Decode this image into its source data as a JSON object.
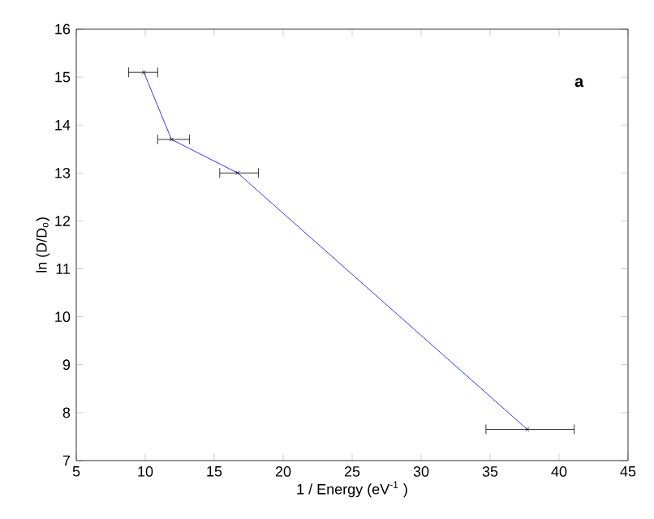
{
  "chart_data": {
    "type": "line",
    "xlabel": "1 / Energy (eV$^{-1}$ )",
    "ylabel": "ln (D/D$_{o}$)",
    "annotations": [
      "**a**"
    ],
    "x": [
      9.9,
      11.9,
      16.7,
      37.7
    ],
    "series": [
      {
        "color": "#0000ff",
        "values": [
          15.1,
          13.7,
          13.0,
          7.65
        ],
        "xerrors": [
          [
            8.8,
            10.9
          ],
          [
            10.9,
            13.2
          ],
          [
            15.4,
            18.2
          ],
          [
            34.7,
            41.1
          ]
        ]
      }
    ],
    "marker": "cross",
    "line_style": "solid",
    "grid": false,
    "xlim": [
      5,
      45
    ],
    "ylim": [
      7,
      16
    ],
    "xticks": [
      5,
      10,
      15,
      20,
      25,
      30,
      35,
      40,
      45
    ],
    "yticks": [
      7,
      8,
      9,
      10,
      11,
      12,
      13,
      14,
      15,
      16
    ]
  }
}
